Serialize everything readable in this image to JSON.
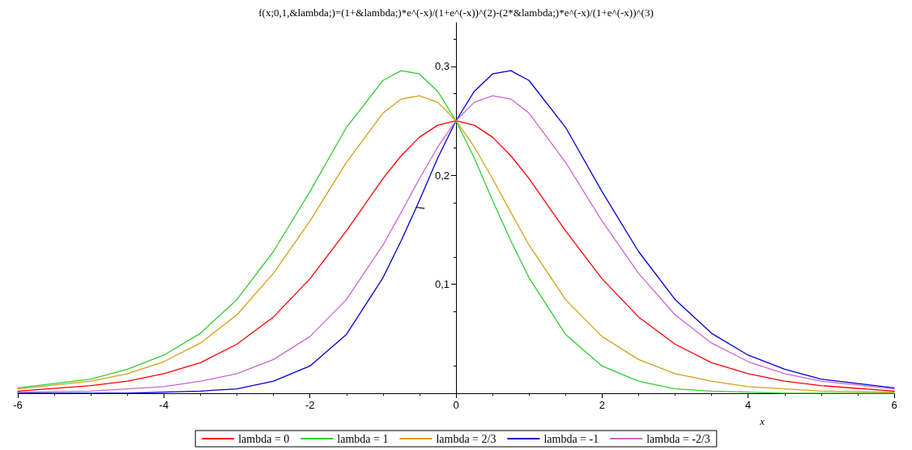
{
  "chart_data": {
    "type": "line",
    "title": "f(x;0,1,&lambda;)=(1+&lambda;)*e^(-x)/(1+e^(-x))^(2)-(2*&lambda;)*e^(-x)/(1+e^(-x))^(3)",
    "xlabel": "x",
    "ylabel": "l",
    "x": [
      -6,
      -5,
      -4.5,
      -4,
      -3.5,
      -3,
      -2.5,
      -2,
      -1.5,
      -1,
      -0.75,
      -0.5,
      -0.25,
      0,
      0.25,
      0.5,
      0.75,
      1,
      1.5,
      2,
      2.5,
      3,
      3.5,
      4,
      4.5,
      5,
      6
    ],
    "series": [
      {
        "name": "lambda = 0",
        "color": "#ff0000",
        "values": [
          0.002,
          0.007,
          0.011,
          0.018,
          0.028,
          0.045,
          0.07,
          0.105,
          0.149,
          0.197,
          0.218,
          0.235,
          0.246,
          0.25,
          0.246,
          0.235,
          0.218,
          0.197,
          0.149,
          0.105,
          0.07,
          0.045,
          0.028,
          0.018,
          0.011,
          0.007,
          0.002
        ]
      },
      {
        "name": "lambda = 1",
        "color": "#33cc33",
        "values": [
          0.005,
          0.013,
          0.022,
          0.035,
          0.055,
          0.086,
          0.13,
          0.185,
          0.244,
          0.287,
          0.296,
          0.293,
          0.277,
          0.25,
          0.216,
          0.177,
          0.14,
          0.106,
          0.054,
          0.025,
          0.011,
          0.004,
          0.002,
          0.001,
          0.0,
          0.0,
          0.0
        ]
      },
      {
        "name": "lambda = 2/3",
        "color": "#d4a017",
        "values": [
          0.004,
          0.011,
          0.018,
          0.029,
          0.046,
          0.072,
          0.11,
          0.158,
          0.212,
          0.257,
          0.27,
          0.273,
          0.267,
          0.25,
          0.226,
          0.197,
          0.166,
          0.136,
          0.086,
          0.052,
          0.031,
          0.018,
          0.011,
          0.006,
          0.004,
          0.002,
          0.001
        ]
      },
      {
        "name": "lambda = -1",
        "color": "#0000cc",
        "values": [
          0.0,
          0.0,
          0.0,
          0.001,
          0.002,
          0.004,
          0.011,
          0.025,
          0.054,
          0.106,
          0.14,
          0.177,
          0.216,
          0.25,
          0.277,
          0.293,
          0.296,
          0.287,
          0.244,
          0.185,
          0.13,
          0.086,
          0.055,
          0.035,
          0.022,
          0.013,
          0.005
        ]
      },
      {
        "name": "lambda = -2/3",
        "color": "#cc66cc",
        "values": [
          0.001,
          0.002,
          0.004,
          0.006,
          0.011,
          0.018,
          0.031,
          0.052,
          0.086,
          0.136,
          0.166,
          0.197,
          0.226,
          0.25,
          0.267,
          0.273,
          0.27,
          0.257,
          0.212,
          0.158,
          0.11,
          0.072,
          0.046,
          0.029,
          0.018,
          0.011,
          0.004
        ]
      }
    ],
    "xlim": [
      -6,
      6
    ],
    "xticks": [
      -6,
      -4,
      -2,
      0,
      2,
      4,
      6
    ],
    "ylim": [
      0,
      0.34
    ],
    "yticks": [
      {
        "value": 0.1,
        "label": "0,1"
      },
      {
        "value": 0.2,
        "label": "0,2"
      },
      {
        "value": 0.3,
        "label": "0,3"
      }
    ],
    "grid": false,
    "legend": "bottom",
    "marker": "none",
    "line_style": "solid"
  }
}
